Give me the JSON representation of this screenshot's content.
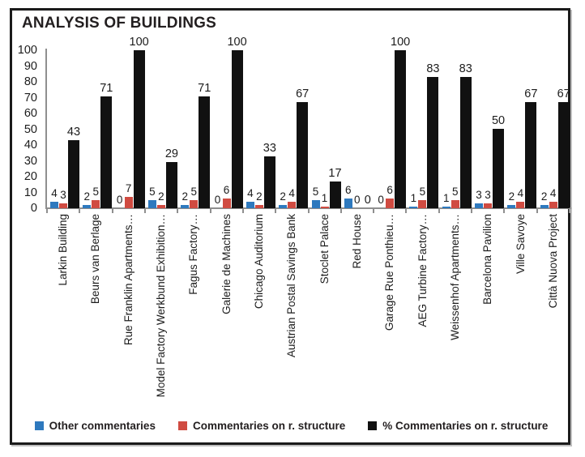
{
  "chart_data": {
    "type": "bar",
    "title": "ANALYSIS OF BUILDINGS",
    "categories": [
      "Larkin Building",
      "Beurs van Berlage",
      "Rue Franklin Apartments…",
      "Model Factory Werkbund Exhibition…",
      "Fagus Factory…",
      "Galerie de Machines",
      "Chicago Auditorium",
      "Austrian Postal Savings Bank",
      "Stoclet Palace",
      "Red House",
      "Garage Rue Ponthieu…",
      "AEG Turbine Factory…",
      "Weissenhof Apartments…",
      "Barcelona Pavilion",
      "Ville Savoye",
      "Città Nuova Project"
    ],
    "series": [
      {
        "name": "Other commentaries",
        "color": "#2e79be",
        "values": [
          4,
          2,
          0,
          5,
          2,
          0,
          4,
          2,
          5,
          6,
          0,
          1,
          1,
          3,
          2,
          2
        ]
      },
      {
        "name": "Commentaries on r. structure",
        "color": "#d04b41",
        "values": [
          3,
          5,
          7,
          2,
          5,
          6,
          2,
          4,
          1,
          0,
          6,
          5,
          5,
          3,
          4,
          4
        ]
      },
      {
        "name": "% Commentaries on r. structure",
        "color": "#111111",
        "values": [
          43,
          71,
          100,
          29,
          71,
          100,
          33,
          67,
          17,
          0,
          100,
          83,
          83,
          50,
          67,
          67
        ]
      }
    ],
    "xlabel": "",
    "ylabel": "",
    "ylim": [
      0,
      100
    ],
    "yticks": [
      0,
      10,
      20,
      30,
      40,
      50,
      60,
      70,
      80,
      90,
      100
    ],
    "grid": false,
    "legend_position": "bottom",
    "axis_color": "#8f8f8f",
    "text_color": "#1c1c1c"
  }
}
